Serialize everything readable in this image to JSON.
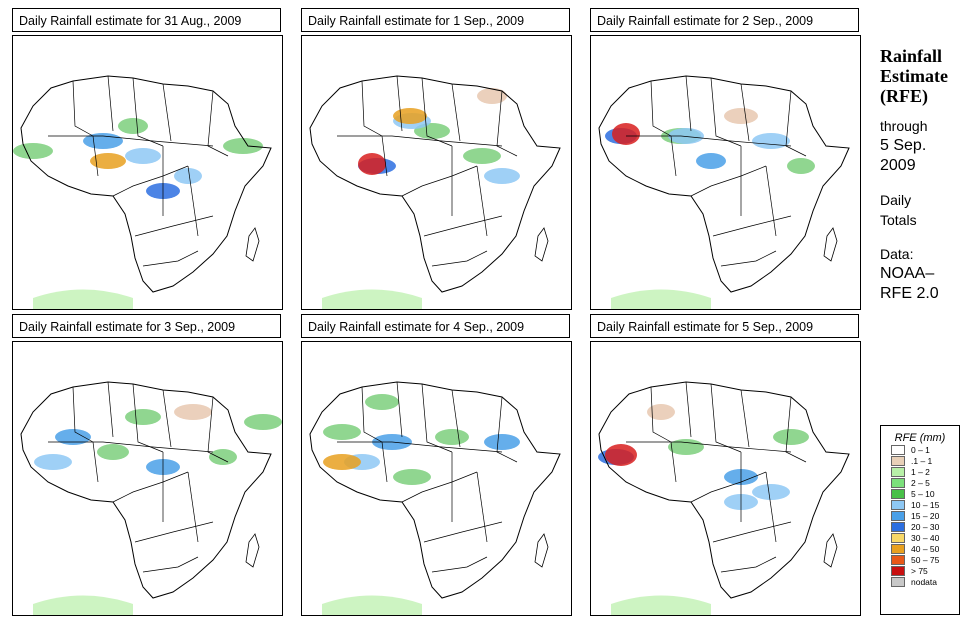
{
  "panels": [
    {
      "title": "Daily Rainfall estimate for  31 Aug., 2009",
      "blobs": [
        {
          "c": "#7ccf7c",
          "x": 20,
          "y": 115
        },
        {
          "c": "#4aa0e8",
          "x": 90,
          "y": 105
        },
        {
          "c": "#8ec8f4",
          "x": 130,
          "y": 120
        },
        {
          "c": "#2d6fe0",
          "x": 150,
          "y": 155
        },
        {
          "c": "#8ec8f4",
          "x": 175,
          "y": 140
        },
        {
          "c": "#7ccf7c",
          "x": 230,
          "y": 110
        },
        {
          "c": "#e8a020",
          "x": 95,
          "y": 125
        },
        {
          "c": "#7ccf7c",
          "x": 120,
          "y": 90
        }
      ]
    },
    {
      "title": "Daily Rainfall estimate for  1 Sep., 2009",
      "blobs": [
        {
          "c": "#2d6fe0",
          "x": 75,
          "y": 130
        },
        {
          "c": "#d81e1e",
          "x": 70,
          "y": 128
        },
        {
          "c": "#7ccf7c",
          "x": 130,
          "y": 95
        },
        {
          "c": "#8ec8f4",
          "x": 110,
          "y": 85
        },
        {
          "c": "#e8a020",
          "x": 108,
          "y": 80
        },
        {
          "c": "#7ccf7c",
          "x": 180,
          "y": 120
        },
        {
          "c": "#8ec8f4",
          "x": 200,
          "y": 140
        },
        {
          "c": "#e8c8b0",
          "x": 190,
          "y": 60
        }
      ]
    },
    {
      "title": "Daily Rainfall estimate for  2 Sep., 2009",
      "blobs": [
        {
          "c": "#2d6fe0",
          "x": 30,
          "y": 100
        },
        {
          "c": "#d81e1e",
          "x": 35,
          "y": 98
        },
        {
          "c": "#7ccf7c",
          "x": 90,
          "y": 100
        },
        {
          "c": "#4aa0e8",
          "x": 120,
          "y": 125
        },
        {
          "c": "#8ec8f4",
          "x": 180,
          "y": 105
        },
        {
          "c": "#7ccf7c",
          "x": 210,
          "y": 130
        },
        {
          "c": "#e8c8b0",
          "x": 150,
          "y": 80
        },
        {
          "c": "#8ec8f4",
          "x": 95,
          "y": 100
        }
      ]
    },
    {
      "title": "Daily Rainfall estimate for  3 Sep., 2009",
      "blobs": [
        {
          "c": "#4aa0e8",
          "x": 60,
          "y": 95
        },
        {
          "c": "#7ccf7c",
          "x": 100,
          "y": 110
        },
        {
          "c": "#4aa0e8",
          "x": 150,
          "y": 125
        },
        {
          "c": "#7ccf7c",
          "x": 210,
          "y": 115
        },
        {
          "c": "#8ec8f4",
          "x": 40,
          "y": 120
        },
        {
          "c": "#7ccf7c",
          "x": 130,
          "y": 75
        },
        {
          "c": "#e8c8b0",
          "x": 180,
          "y": 70
        },
        {
          "c": "#7ccf7c",
          "x": 250,
          "y": 80
        }
      ]
    },
    {
      "title": "Daily Rainfall estimate for  4 Sep., 2009",
      "blobs": [
        {
          "c": "#7ccf7c",
          "x": 40,
          "y": 90
        },
        {
          "c": "#4aa0e8",
          "x": 90,
          "y": 100
        },
        {
          "c": "#7ccf7c",
          "x": 150,
          "y": 95
        },
        {
          "c": "#4aa0e8",
          "x": 200,
          "y": 100
        },
        {
          "c": "#7ccf7c",
          "x": 110,
          "y": 135
        },
        {
          "c": "#8ec8f4",
          "x": 60,
          "y": 120
        },
        {
          "c": "#7ccf7c",
          "x": 80,
          "y": 60
        },
        {
          "c": "#e8a020",
          "x": 40,
          "y": 120
        }
      ]
    },
    {
      "title": "Daily Rainfall estimate for  5 Sep., 2009",
      "blobs": [
        {
          "c": "#2d6fe0",
          "x": 25,
          "y": 115
        },
        {
          "c": "#d81e1e",
          "x": 30,
          "y": 113
        },
        {
          "c": "#4aa0e8",
          "x": 150,
          "y": 135
        },
        {
          "c": "#8ec8f4",
          "x": 150,
          "y": 160
        },
        {
          "c": "#7ccf7c",
          "x": 95,
          "y": 105
        },
        {
          "c": "#8ec8f4",
          "x": 180,
          "y": 150
        },
        {
          "c": "#7ccf7c",
          "x": 200,
          "y": 95
        },
        {
          "c": "#e8c8b0",
          "x": 70,
          "y": 70
        }
      ]
    }
  ],
  "side": {
    "title_line1": "Rainfall",
    "title_line2": "Estimate",
    "title_line3": "(RFE)",
    "through": "through",
    "date1": "5 Sep.",
    "date2": "2009",
    "daily1": "Daily",
    "daily2": "Totals",
    "data1": "Data:",
    "data2": "NOAA–",
    "data3": "RFE 2.0"
  },
  "legend": {
    "title": "RFE (mm)",
    "items": [
      {
        "label": "0 – 1",
        "color": "#ffffff"
      },
      {
        "label": ".1 – 1",
        "color": "#e8d0b8"
      },
      {
        "label": "1 – 2",
        "color": "#b8f0a8"
      },
      {
        "label": "2 – 5",
        "color": "#7ce07c"
      },
      {
        "label": "5 – 10",
        "color": "#48c048"
      },
      {
        "label": "10 – 15",
        "color": "#8ec8f4"
      },
      {
        "label": "15 – 20",
        "color": "#4aa0e8"
      },
      {
        "label": "20 – 30",
        "color": "#2d6fe0"
      },
      {
        "label": "30 – 40",
        "color": "#f8d868"
      },
      {
        "label": "40 – 50",
        "color": "#e8a020"
      },
      {
        "label": "50 – 75",
        "color": "#e85818"
      },
      {
        "label": "> 75",
        "color": "#c81010"
      },
      {
        "label": "nodata",
        "color": "#c8c8c8"
      }
    ]
  }
}
